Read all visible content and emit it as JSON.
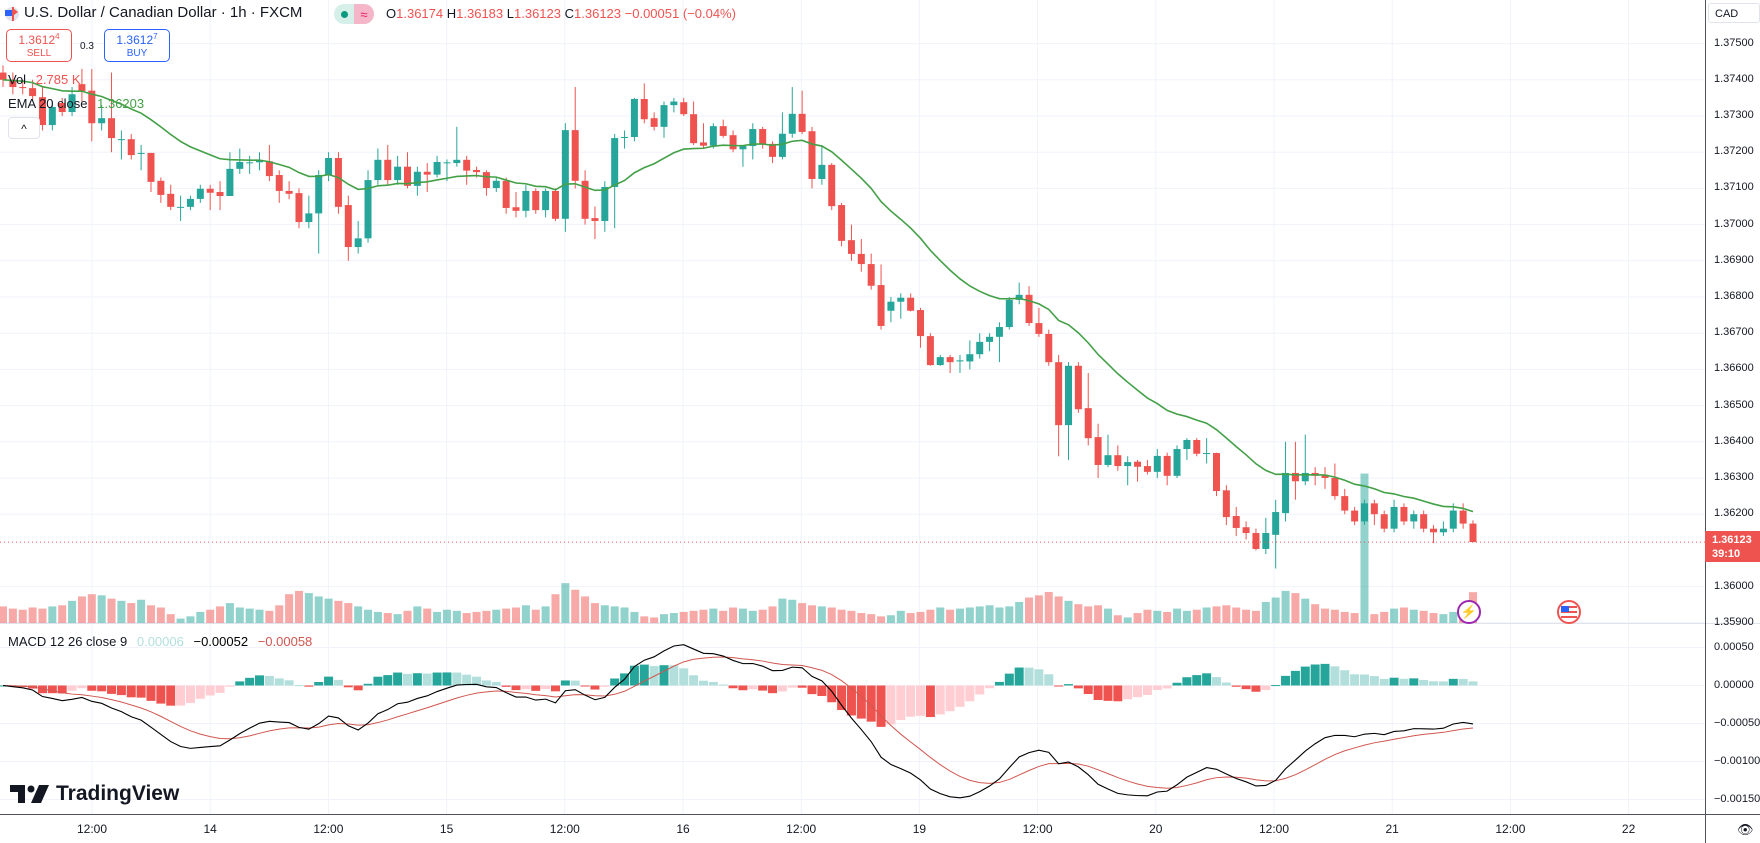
{
  "header": {
    "title": "U.S. Dollar / Canadian Dollar · 1h · FXCM",
    "status_wave": "≈",
    "ohlc": {
      "o_label": "O",
      "o": "1.36174",
      "h_label": "H",
      "h": "1.36183",
      "l_label": "L",
      "l": "1.36123",
      "c_label": "C",
      "c": "1.36123",
      "change": "−0.00051 (−0.04%)"
    }
  },
  "trade": {
    "sell_price": "1.3612",
    "sell_pip": "4",
    "sell_label": "SELL",
    "spread": "0.3",
    "buy_price": "1.3612",
    "buy_pip": "7",
    "buy_label": "BUY"
  },
  "legends": {
    "vol_label": "Vol",
    "vol_value": "2.785 K",
    "ema_label": "EMA 20 close",
    "ema_value": "1.36203",
    "macd_label": "MACD 12 26 close 9",
    "macd_hist": "0.00006",
    "macd_line": "−0.00052",
    "macd_signal": "−0.00058",
    "collapse_glyph": "^"
  },
  "price_axis": {
    "currency": "CAD",
    "ticks": [
      "1.37500",
      "1.37400",
      "1.37300",
      "1.37200",
      "1.37100",
      "1.37000",
      "1.36900",
      "1.36800",
      "1.36700",
      "1.36600",
      "1.36500",
      "1.36400",
      "1.36300",
      "1.36200",
      "1.36000",
      "1.35900"
    ],
    "last_price": "1.36123",
    "countdown": "39:10"
  },
  "macd_axis": {
    "ticks": [
      "0.00050",
      "0.00000",
      "−0.00050",
      "−0.00100",
      "−0.00150"
    ]
  },
  "time_axis": {
    "labels": [
      "12:00",
      "14",
      "12:00",
      "15",
      "12:00",
      "16",
      "12:00",
      "19",
      "12:00",
      "20",
      "12:00",
      "21",
      "12:00",
      "22"
    ]
  },
  "brand": {
    "name": "TradingView"
  },
  "colors": {
    "up": "#26a69a",
    "down": "#ef5350",
    "ema": "#43a047",
    "macd": "#000000",
    "signal": "#d0574f",
    "grid": "#f0f3fa"
  },
  "icons": {
    "flag": "us-ca-flag-icon",
    "flash": "lightning-icon",
    "event": "us-flag-event-icon",
    "eye": "eye-icon"
  },
  "chart_data": {
    "type": "candlestick",
    "symbol": "USDCAD",
    "interval": "1h",
    "ylim": [
      1.359,
      1.3755
    ],
    "ohlc": [
      [
        1.3742,
        1.3744,
        1.3738,
        1.374
      ],
      [
        1.374,
        1.3742,
        1.3736,
        1.3738
      ],
      [
        1.3738,
        1.374,
        1.3736,
        1.37377
      ],
      [
        1.37377,
        1.374,
        1.3734,
        1.37355
      ],
      [
        1.37352,
        1.3738,
        1.3726,
        1.37275
      ],
      [
        1.37275,
        1.3734,
        1.3726,
        1.37325
      ],
      [
        1.37336,
        1.3735,
        1.373,
        1.37311
      ],
      [
        1.37311,
        1.3738,
        1.373,
        1.3736
      ],
      [
        1.37388,
        1.3743,
        1.3734,
        1.37369
      ],
      [
        1.3737,
        1.3743,
        1.3723,
        1.3728
      ],
      [
        1.3728,
        1.3733,
        1.3726,
        1.37294
      ],
      [
        1.37294,
        1.3742,
        1.372,
        1.37239
      ],
      [
        1.37236,
        1.3726,
        1.3718,
        1.37236
      ],
      [
        1.37236,
        1.3725,
        1.3718,
        1.37192
      ],
      [
        1.37198,
        1.3722,
        1.3715,
        1.37198
      ],
      [
        1.37198,
        1.37198,
        1.3709,
        1.37118
      ],
      [
        1.37121,
        1.3713,
        1.3706,
        1.37082
      ],
      [
        1.37085,
        1.3711,
        1.3704,
        1.37049
      ],
      [
        1.37049,
        1.3708,
        1.3701,
        1.37049
      ],
      [
        1.37049,
        1.3708,
        1.3704,
        1.37071
      ],
      [
        1.37071,
        1.3711,
        1.3706,
        1.37099
      ],
      [
        1.37099,
        1.3711,
        1.3704,
        1.37088
      ],
      [
        1.3709,
        1.3712,
        1.3704,
        1.37079
      ],
      [
        1.37079,
        1.372,
        1.37079,
        1.37154
      ],
      [
        1.37154,
        1.3721,
        1.3714,
        1.37173
      ],
      [
        1.37172,
        1.3719,
        1.3714,
        1.37172
      ],
      [
        1.37172,
        1.372,
        1.3715,
        1.37176
      ],
      [
        1.37175,
        1.3722,
        1.3712,
        1.37134
      ],
      [
        1.37137,
        1.3715,
        1.3706,
        1.37093
      ],
      [
        1.37093,
        1.3712,
        1.3707,
        1.37085
      ],
      [
        1.37087,
        1.371,
        1.3699,
        1.37007
      ],
      [
        1.37007,
        1.3708,
        1.3699,
        1.37031
      ],
      [
        1.37031,
        1.3715,
        1.3692,
        1.37137
      ],
      [
        1.37137,
        1.372,
        1.3712,
        1.37184
      ],
      [
        1.37184,
        1.372,
        1.3703,
        1.37049
      ],
      [
        1.37054,
        1.3708,
        1.369,
        1.36938
      ],
      [
        1.36938,
        1.3701,
        1.3692,
        1.36962
      ],
      [
        1.36962,
        1.3715,
        1.3695,
        1.37123
      ],
      [
        1.37123,
        1.3721,
        1.3711,
        1.37179
      ],
      [
        1.37179,
        1.3722,
        1.3711,
        1.37123
      ],
      [
        1.37123,
        1.3719,
        1.3711,
        1.3716
      ],
      [
        1.3716,
        1.372,
        1.371,
        1.37107
      ],
      [
        1.37107,
        1.3716,
        1.3708,
        1.37146
      ],
      [
        1.37146,
        1.3717,
        1.3709,
        1.37138
      ],
      [
        1.37138,
        1.3719,
        1.3713,
        1.37173
      ],
      [
        1.37172,
        1.3718,
        1.3712,
        1.37172
      ],
      [
        1.3717,
        1.3727,
        1.3716,
        1.37179
      ],
      [
        1.37179,
        1.3719,
        1.3711,
        1.37149
      ],
      [
        1.37151,
        1.3716,
        1.3713,
        1.37145
      ],
      [
        1.37145,
        1.3715,
        1.3708,
        1.37101
      ],
      [
        1.37101,
        1.3713,
        1.3709,
        1.37121
      ],
      [
        1.37121,
        1.3713,
        1.3703,
        1.37046
      ],
      [
        1.37048,
        1.3709,
        1.3702,
        1.37038
      ],
      [
        1.37038,
        1.3711,
        1.3702,
        1.37093
      ],
      [
        1.37093,
        1.371,
        1.3703,
        1.3704
      ],
      [
        1.3704,
        1.371,
        1.3702,
        1.37093
      ],
      [
        1.37093,
        1.371,
        1.3701,
        1.37016
      ],
      [
        1.37016,
        1.3728,
        1.3698,
        1.37261
      ],
      [
        1.37261,
        1.3738,
        1.371,
        1.37121
      ],
      [
        1.37121,
        1.3715,
        1.37,
        1.37016
      ],
      [
        1.37018,
        1.3705,
        1.3696,
        1.3701
      ],
      [
        1.3701,
        1.3712,
        1.3698,
        1.37104
      ],
      [
        1.37104,
        1.3725,
        1.3699,
        1.37239
      ],
      [
        1.37242,
        1.3726,
        1.3721,
        1.37242
      ],
      [
        1.37242,
        1.3735,
        1.3723,
        1.37347
      ],
      [
        1.37347,
        1.3739,
        1.3728,
        1.37291
      ],
      [
        1.37294,
        1.3731,
        1.3726,
        1.3727
      ],
      [
        1.3727,
        1.3734,
        1.3724,
        1.3733
      ],
      [
        1.3733,
        1.3735,
        1.3731,
        1.3734
      ],
      [
        1.37338,
        1.3735,
        1.373,
        1.37305
      ],
      [
        1.37305,
        1.3734,
        1.3722,
        1.37225
      ],
      [
        1.37227,
        1.3728,
        1.3721,
        1.37218
      ],
      [
        1.37218,
        1.3728,
        1.3721,
        1.37272
      ],
      [
        1.37272,
        1.3729,
        1.3724,
        1.37245
      ],
      [
        1.37247,
        1.3726,
        1.372,
        1.37208
      ],
      [
        1.37208,
        1.3722,
        1.3716,
        1.37217
      ],
      [
        1.37217,
        1.3728,
        1.3718,
        1.37264
      ],
      [
        1.37264,
        1.3727,
        1.3721,
        1.37223
      ],
      [
        1.37223,
        1.3723,
        1.3717,
        1.37187
      ],
      [
        1.37187,
        1.3731,
        1.3718,
        1.37251
      ],
      [
        1.37251,
        1.3738,
        1.3724,
        1.37306
      ],
      [
        1.37306,
        1.3737,
        1.3725,
        1.37256
      ],
      [
        1.37258,
        1.3727,
        1.371,
        1.37126
      ],
      [
        1.37126,
        1.3722,
        1.3711,
        1.37165
      ],
      [
        1.37165,
        1.3717,
        1.3704,
        1.37051
      ],
      [
        1.37054,
        1.3706,
        1.3694,
        1.36955
      ],
      [
        1.36957,
        1.37,
        1.369,
        1.36919
      ],
      [
        1.36919,
        1.3696,
        1.3687,
        1.36891
      ],
      [
        1.36891,
        1.3692,
        1.3682,
        1.36831
      ],
      [
        1.36833,
        1.3689,
        1.3671,
        1.3672
      ],
      [
        1.36762,
        1.368,
        1.3673,
        1.36787
      ],
      [
        1.36787,
        1.3681,
        1.3674,
        1.36798
      ],
      [
        1.36798,
        1.3681,
        1.3676,
        1.36762
      ],
      [
        1.36764,
        1.3677,
        1.3666,
        1.36692
      ],
      [
        1.36692,
        1.367,
        1.3661,
        1.36612
      ],
      [
        1.36612,
        1.3664,
        1.3661,
        1.36634
      ],
      [
        1.36634,
        1.3664,
        1.3659,
        1.3662
      ],
      [
        1.36622,
        1.3664,
        1.3659,
        1.36625
      ],
      [
        1.36622,
        1.3668,
        1.366,
        1.36642
      ],
      [
        1.36642,
        1.367,
        1.3663,
        1.36676
      ],
      [
        1.36676,
        1.367,
        1.3665,
        1.3669
      ],
      [
        1.3669,
        1.3673,
        1.3662,
        1.36717
      ],
      [
        1.36717,
        1.368,
        1.3671,
        1.36792
      ],
      [
        1.36792,
        1.3684,
        1.3678,
        1.36806
      ],
      [
        1.36806,
        1.3683,
        1.3672,
        1.36728
      ],
      [
        1.36728,
        1.3677,
        1.3669,
        1.36698
      ],
      [
        1.36698,
        1.3671,
        1.3661,
        1.3662
      ],
      [
        1.3662,
        1.3664,
        1.3636,
        1.36446
      ],
      [
        1.36446,
        1.3662,
        1.3635,
        1.3661
      ],
      [
        1.3661,
        1.3662,
        1.3648,
        1.3649
      ],
      [
        1.36493,
        1.3659,
        1.3639,
        1.3641
      ],
      [
        1.36413,
        1.3645,
        1.363,
        1.36336
      ],
      [
        1.36336,
        1.3642,
        1.3633,
        1.36363
      ],
      [
        1.36363,
        1.3639,
        1.3632,
        1.36333
      ],
      [
        1.36333,
        1.3636,
        1.3628,
        1.36344
      ],
      [
        1.36345,
        1.3635,
        1.3629,
        1.36331
      ],
      [
        1.36333,
        1.3635,
        1.3631,
        1.36317
      ],
      [
        1.36317,
        1.3638,
        1.363,
        1.36361
      ],
      [
        1.36361,
        1.3637,
        1.3628,
        1.36306
      ],
      [
        1.36306,
        1.3639,
        1.363,
        1.3638
      ],
      [
        1.3638,
        1.3641,
        1.3635,
        1.36405
      ],
      [
        1.36405,
        1.3641,
        1.3636,
        1.36367
      ],
      [
        1.36369,
        1.3641,
        1.3634,
        1.36369
      ],
      [
        1.36369,
        1.3637,
        1.3625,
        1.36264
      ],
      [
        1.36266,
        1.3628,
        1.3617,
        1.36192
      ],
      [
        1.36195,
        1.3622,
        1.3614,
        1.36162
      ],
      [
        1.36164,
        1.3618,
        1.3613,
        1.36148
      ],
      [
        1.36148,
        1.3616,
        1.361,
        1.36104
      ],
      [
        1.36104,
        1.3619,
        1.3609,
        1.36148
      ],
      [
        1.36143,
        1.3624,
        1.3605,
        1.36206
      ],
      [
        1.36203,
        1.364,
        1.3618,
        1.36314
      ],
      [
        1.36314,
        1.364,
        1.3624,
        1.36291
      ],
      [
        1.36291,
        1.3642,
        1.3628,
        1.36314
      ],
      [
        1.36314,
        1.3633,
        1.3628,
        1.36306
      ],
      [
        1.36309,
        1.3633,
        1.3627,
        1.363
      ],
      [
        1.363,
        1.3634,
        1.3624,
        1.3625
      ],
      [
        1.3625,
        1.3627,
        1.362,
        1.3621
      ],
      [
        1.3621,
        1.3622,
        1.3617,
        1.3618
      ],
      [
        1.3618,
        1.3624,
        1.3617,
        1.3623
      ],
      [
        1.3623,
        1.3624,
        1.3617,
        1.362
      ],
      [
        1.362,
        1.3621,
        1.3615,
        1.3616
      ],
      [
        1.3616,
        1.3624,
        1.3615,
        1.3622
      ],
      [
        1.3622,
        1.3623,
        1.3617,
        1.3618
      ],
      [
        1.3618,
        1.3621,
        1.3616,
        1.362
      ],
      [
        1.362,
        1.3621,
        1.3615,
        1.3616
      ],
      [
        1.3616,
        1.3617,
        1.3612,
        1.3615
      ],
      [
        1.3615,
        1.3618,
        1.3614,
        1.3616
      ],
      [
        1.3616,
        1.3623,
        1.3615,
        1.3621
      ],
      [
        1.3621,
        1.3623,
        1.3616,
        1.36174
      ],
      [
        1.36174,
        1.36183,
        1.36123,
        1.36123
      ]
    ],
    "volume_k": [
      1.5,
      1.3,
      1.2,
      1.4,
      1.3,
      1.5,
      1.6,
      2.0,
      2.4,
      2.6,
      2.5,
      2.2,
      2.0,
      1.8,
      2.1,
      1.6,
      1.4,
      0.8,
      0.4,
      0.6,
      1.0,
      1.2,
      1.5,
      1.8,
      1.4,
      1.3,
      1.2,
      1.1,
      1.6,
      2.6,
      2.9,
      2.7,
      2.4,
      2.2,
      2.0,
      1.8,
      1.5,
      1.2,
      1.0,
      0.9,
      0.8,
      1.1,
      1.5,
      1.3,
      1.0,
      1.2,
      1.1,
      0.9,
      1.0,
      1.1,
      1.2,
      1.3,
      1.4,
      1.6,
      1.2,
      1.5,
      2.6,
      3.6,
      3.0,
      2.4,
      1.8,
      1.6,
      1.5,
      1.4,
      1.0,
      0.6,
      0.5,
      0.8,
      0.9,
      1.0,
      1.1,
      1.2,
      1.3,
      1.1,
      1.4,
      1.3,
      1.1,
      1.2,
      1.5,
      2.2,
      2.1,
      1.8,
      1.6,
      1.5,
      1.4,
      1.2,
      1.1,
      0.9,
      0.8,
      0.6,
      0.7,
      1.1,
      0.9,
      1.0,
      1.2,
      1.4,
      1.2,
      1.3,
      1.4,
      1.5,
      1.6,
      1.4,
      1.5,
      1.9,
      2.3,
      2.5,
      2.8,
      2.4,
      2.0,
      1.7,
      1.5,
      1.6,
      1.3,
      0.7,
      0.5,
      0.9,
      1.2,
      1.1,
      1.0,
      1.3,
      1.1,
      1.2,
      1.4,
      1.5,
      1.6,
      1.4,
      1.2,
      1.1,
      1.9,
      2.3,
      2.9,
      2.7,
      2.2,
      1.7,
      1.3,
      1.2,
      1.0,
      0.9,
      13.5,
      0.8,
      1.0,
      1.3,
      1.4,
      1.2,
      1.1,
      0.9,
      0.8,
      1.0,
      1.6,
      2.785
    ],
    "indicators": {
      "ema_period": 20,
      "macd": [
        12,
        26,
        9
      ]
    },
    "current_price": 1.36123
  }
}
